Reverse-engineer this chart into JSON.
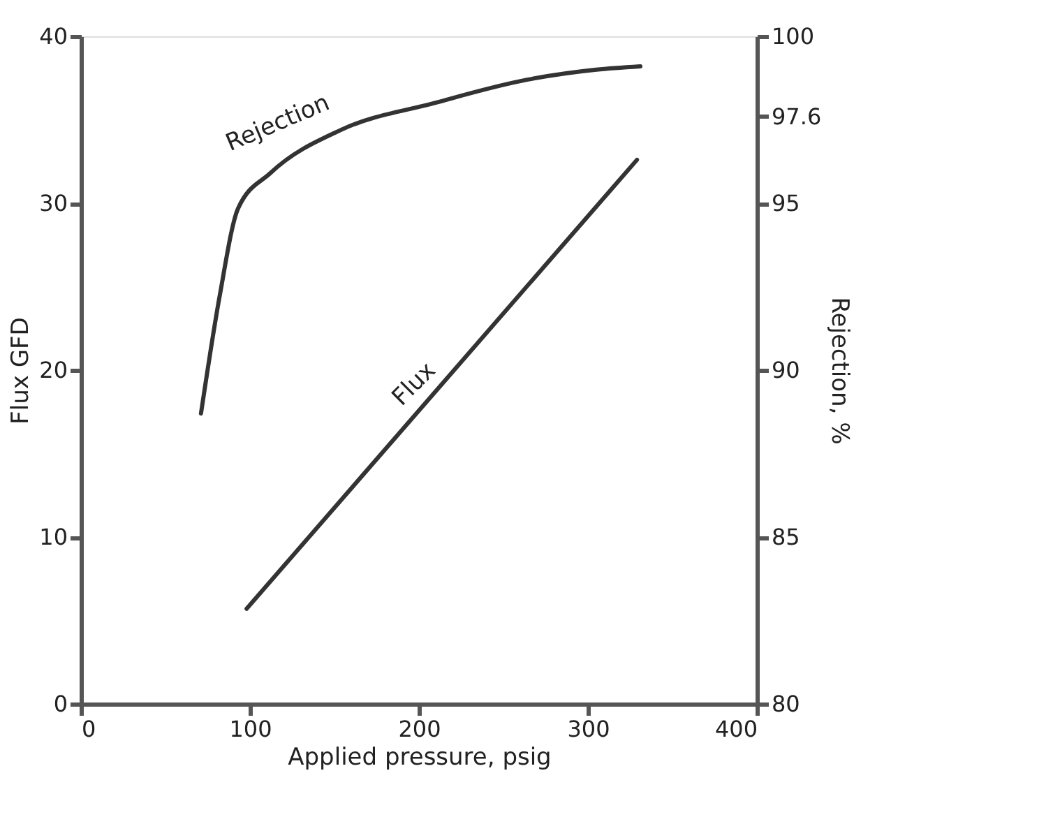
{
  "chart_data": {
    "type": "line",
    "xlabel": "Applied pressure, psig",
    "ylabel": "Flux GFD",
    "y2label": "Rejection, %",
    "xlim": [
      0,
      400
    ],
    "xticks": [
      0,
      100,
      200,
      300,
      400
    ],
    "ylim": [
      0,
      40
    ],
    "yticks": [
      0,
      10,
      20,
      30,
      40
    ],
    "y2lim": [
      80,
      100
    ],
    "y2ticks": [
      80,
      85,
      90,
      95,
      97.6,
      100
    ],
    "grid": false,
    "marker": "none",
    "line_style": "solid",
    "series": [
      {
        "name": "Rejection",
        "color": "#333333",
        "axis": "y2",
        "x": [
          71,
          82,
          93,
          112,
          154,
          209,
          264,
          305,
          331
        ],
        "values": [
          88.7,
          92.2,
          94.85,
          95.9,
          97.2,
          98.0,
          98.7,
          99.0,
          99.1
        ]
      },
      {
        "name": "Flux",
        "color": "#333333",
        "x": [
          98,
          329
        ],
        "values": [
          5.7,
          32.6
        ]
      }
    ]
  }
}
